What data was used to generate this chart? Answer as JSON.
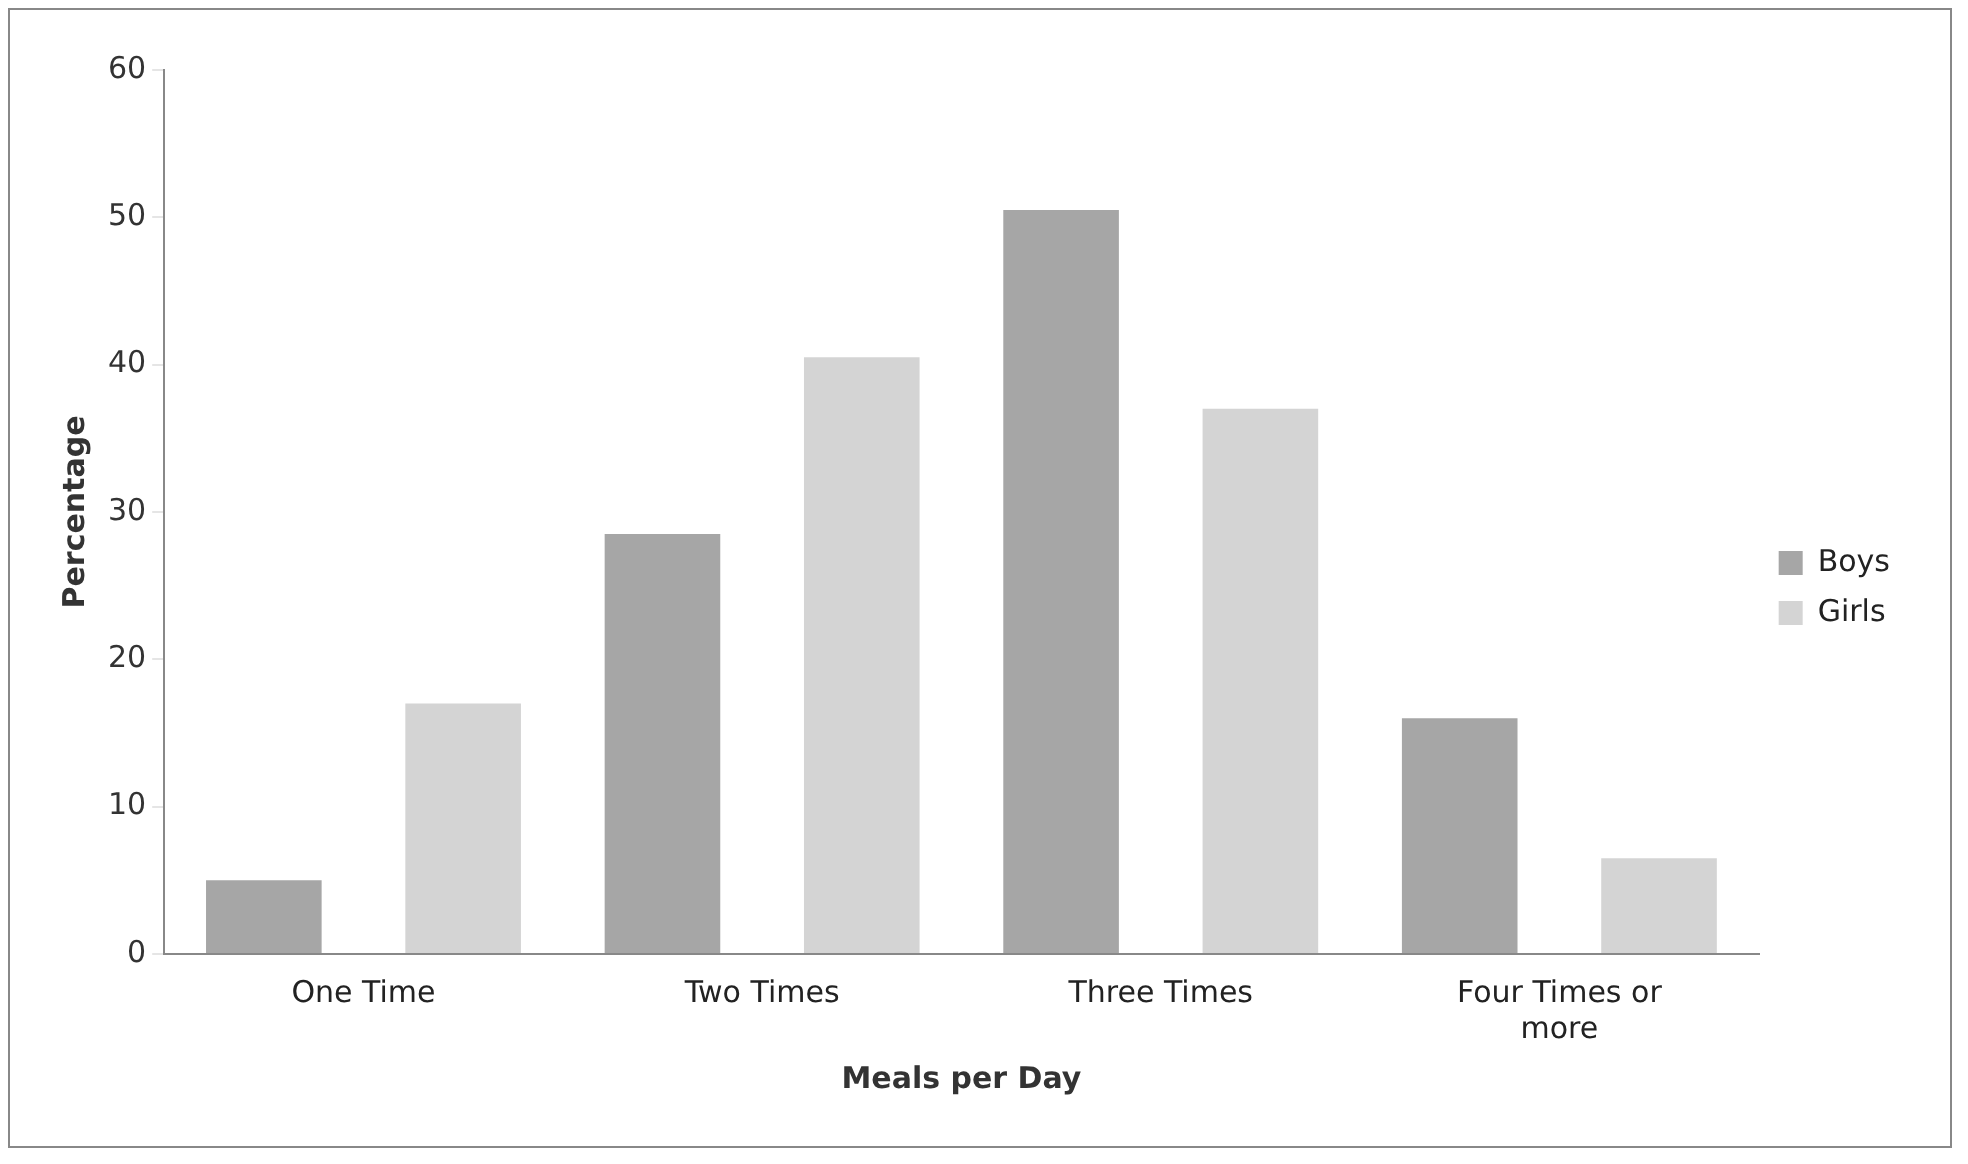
{
  "chart_data": {
    "type": "bar",
    "xlabel": "Meals per Day",
    "ylabel": "Percentage",
    "categories": [
      "One Time",
      "Two Times",
      "Three Times",
      "Four Times or more"
    ],
    "series": [
      {
        "name": "Boys",
        "color": "#a6a6a6",
        "values": [
          5,
          28.5,
          50.5,
          16
        ]
      },
      {
        "name": "Girls",
        "color": "#d4d4d4",
        "values": [
          17,
          40.5,
          37,
          6.5
        ]
      }
    ],
    "ylim": [
      0,
      60
    ],
    "yticks": [
      0,
      10,
      20,
      30,
      40,
      50,
      60
    ],
    "grid": false,
    "legend": "right"
  }
}
